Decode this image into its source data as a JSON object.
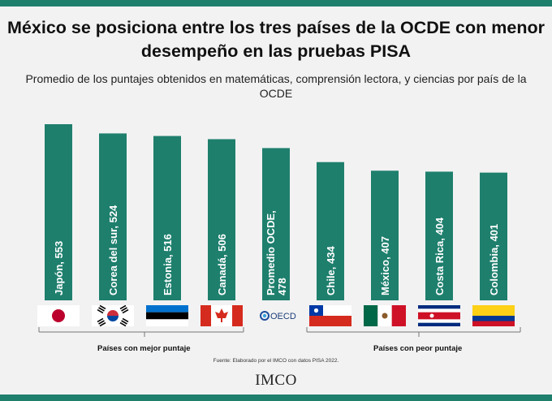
{
  "title": "México se posiciona entre los tres países de la OCDE con menor desempeño en las pruebas PISA",
  "subtitle": "Promedio de los puntajes obtenidos en matemáticas, comprensión lectora, y ciencias por país de la OCDE",
  "source": "Fuente: Elaborado por el IMCO con datos PISA 2022.",
  "logo_text": "IMCO",
  "group_labels": {
    "best": "Países con mejor puntaje",
    "worst": "Países con peor puntaje"
  },
  "colors": {
    "bar": "#1e7f6d",
    "stripe": "#1e7f6d",
    "background": "#f2f2f2"
  },
  "chart_data": {
    "type": "bar",
    "categories": [
      "Japón",
      "Corea del sur",
      "Estonia",
      "Canadá",
      "Promedio OCDE",
      "Chile",
      "México",
      "Costa Rica",
      "Colombia"
    ],
    "values": [
      553,
      524,
      516,
      506,
      478,
      434,
      407,
      404,
      401
    ],
    "bar_labels": [
      "Japón, 553",
      "Corea del sur, 524",
      "Estonia, 516",
      "Canadá, 506",
      "Promedio OCDE, 478",
      "Chile, 434",
      "México, 407",
      "Costa Rica, 404",
      "Colombia, 401"
    ],
    "flags": [
      "japan-flag-icon",
      "south-korea-flag-icon",
      "estonia-flag-icon",
      "canada-flag-icon",
      "oecd-logo",
      "chile-flag-icon",
      "mexico-flag-icon",
      "costa-rica-flag-icon",
      "colombia-flag-icon"
    ],
    "oecd_flag_text": "OECD",
    "title": "México se posiciona entre los tres países de la OCDE con menor desempeño en las pruebas PISA",
    "subtitle": "Promedio de los puntajes obtenidos en matemáticas, comprensión lectora, y ciencias por país de la OCDE",
    "xlabel": "",
    "ylabel": "",
    "ylim": [
      0,
      553
    ],
    "bar_color": "#1e7f6d",
    "grid": false,
    "label_orientation": "vertical"
  }
}
